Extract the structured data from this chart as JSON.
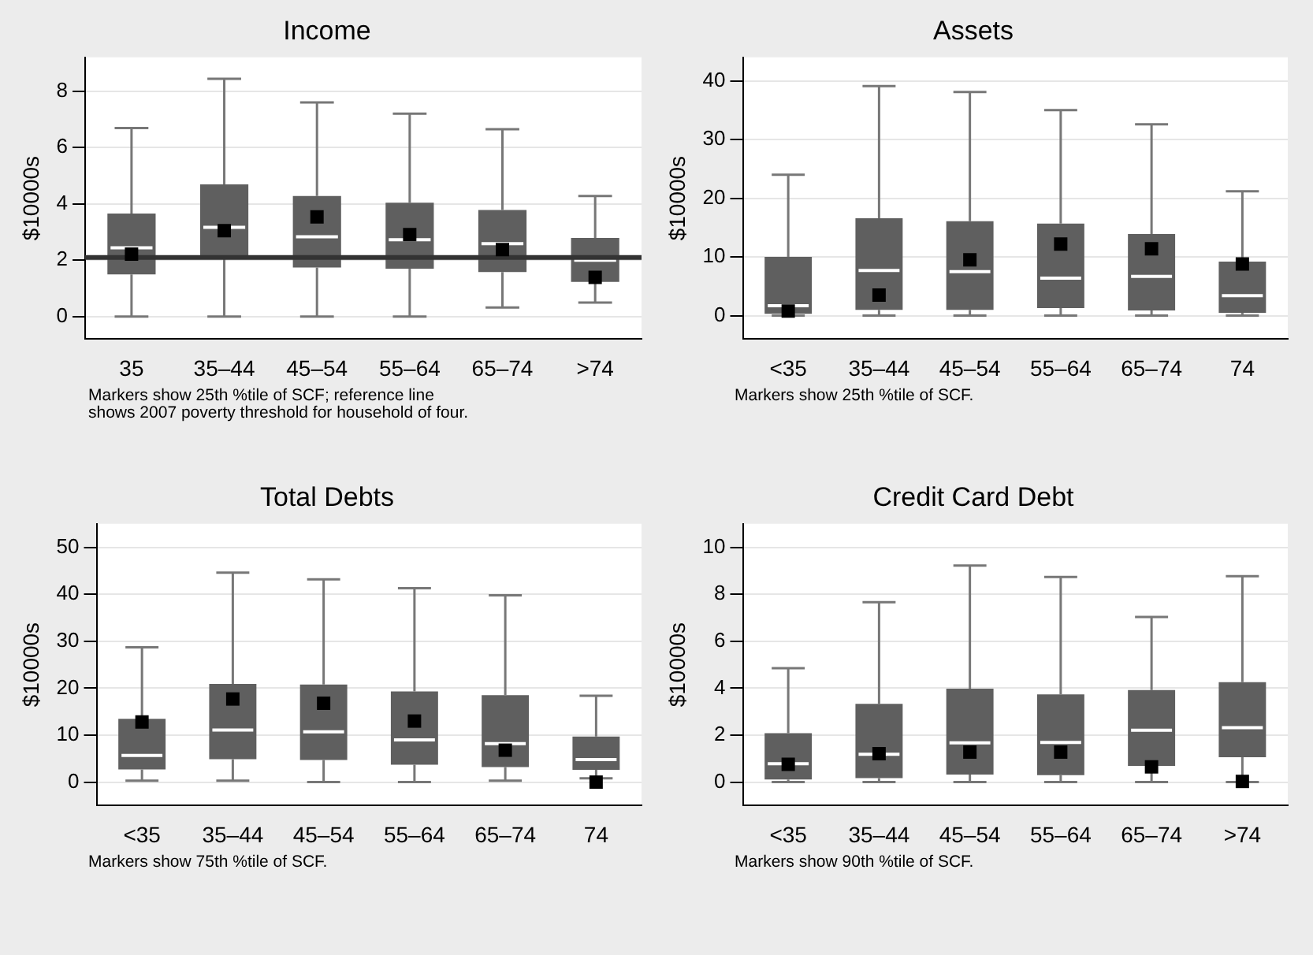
{
  "chart_data": [
    {
      "type": "box",
      "title": "Income",
      "ylabel": "$10000s",
      "categories": [
        "35",
        "35–44",
        "45–54",
        "55–64",
        "65–74",
        ">74"
      ],
      "ylim": [
        -0.8,
        9.2
      ],
      "yticks": [
        0,
        2,
        4,
        6,
        8
      ],
      "grid": "y",
      "legend": false,
      "series": [
        {
          "color": "#5f5f5f",
          "boxes": [
            {
              "low": 0,
              "q1": 1.5,
              "median": 2.44,
              "q3": 3.66,
              "high": 6.69
            },
            {
              "low": 0,
              "q1": 2.06,
              "median": 3.17,
              "q3": 4.69,
              "high": 8.44
            },
            {
              "low": 0,
              "q1": 1.74,
              "median": 2.83,
              "q3": 4.28,
              "high": 7.6
            },
            {
              "low": 0,
              "q1": 1.7,
              "median": 2.73,
              "q3": 4.04,
              "high": 7.2
            },
            {
              "low": 0.32,
              "q1": 1.58,
              "median": 2.59,
              "q3": 3.78,
              "high": 6.65
            },
            {
              "low": 0.5,
              "q1": 1.23,
              "median": 2.0,
              "q3": 2.79,
              "high": 4.28
            }
          ]
        },
        {
          "type": "scatter",
          "color": "#000000",
          "marker": "square",
          "x": [
            "35",
            "35–44",
            "45–54",
            "55–64",
            "65–74",
            ">74"
          ],
          "values": [
            2.22,
            3.05,
            3.54,
            2.91,
            2.38,
            1.39
          ]
        }
      ],
      "ref_lines": [
        {
          "axis": "y",
          "value": 2.1,
          "color": "#333333"
        }
      ],
      "annotations": [
        "Markers show 25th %tile of SCF; reference line\nshows 2007 poverty threshold for household of four."
      ]
    },
    {
      "type": "box",
      "title": "Assets",
      "ylabel": "$10000s",
      "categories": [
        "<35",
        "35–44",
        "45–54",
        "55–64",
        "65–74",
        "74"
      ],
      "ylim": [
        -4,
        44
      ],
      "yticks": [
        0,
        10,
        20,
        30,
        40
      ],
      "grid": "y",
      "legend": false,
      "series": [
        {
          "color": "#5f5f5f",
          "boxes": [
            {
              "low": 0,
              "q1": 0.3,
              "median": 1.7,
              "q3": 10,
              "high": 24
            },
            {
              "low": 0,
              "q1": 1.0,
              "median": 7.7,
              "q3": 16.6,
              "high": 39.1
            },
            {
              "low": 0,
              "q1": 1.0,
              "median": 7.5,
              "q3": 16.1,
              "high": 38.1
            },
            {
              "low": 0,
              "q1": 1.3,
              "median": 6.4,
              "q3": 15.7,
              "high": 35
            },
            {
              "low": 0,
              "q1": 0.9,
              "median": 6.7,
              "q3": 13.9,
              "high": 32.6
            },
            {
              "low": 0,
              "q1": 0.5,
              "median": 3.4,
              "q3": 9.2,
              "high": 21.2
            }
          ]
        },
        {
          "type": "scatter",
          "color": "#000000",
          "marker": "square",
          "x": [
            "<35",
            "35–44",
            "45–54",
            "55–64",
            "65–74",
            "74"
          ],
          "values": [
            0.8,
            3.5,
            9.5,
            12.2,
            11.4,
            8.8
          ]
        }
      ],
      "annotations": [
        "Markers show 25th %tile of SCF."
      ]
    },
    {
      "type": "box",
      "title": "Total Debts",
      "ylabel": "$10000s",
      "categories": [
        "<35",
        "35–44",
        "45–54",
        "55–64",
        "65–74",
        "74"
      ],
      "ylim": [
        -5,
        55
      ],
      "yticks": [
        0,
        10,
        20,
        30,
        40,
        50
      ],
      "grid": "y",
      "legend": false,
      "series": [
        {
          "color": "#5f5f5f",
          "boxes": [
            {
              "low": 0.3,
              "q1": 2.7,
              "median": 5.7,
              "q3": 13.5,
              "high": 28.7
            },
            {
              "low": 0.3,
              "q1": 4.9,
              "median": 11.1,
              "q3": 20.9,
              "high": 44.6
            },
            {
              "low": 0,
              "q1": 4.7,
              "median": 10.7,
              "q3": 20.8,
              "high": 43.2
            },
            {
              "low": 0,
              "q1": 3.7,
              "median": 9.0,
              "q3": 19.3,
              "high": 41.3
            },
            {
              "low": 0.3,
              "q1": 3.2,
              "median": 8.2,
              "q3": 18.5,
              "high": 39.8
            },
            {
              "low": 0.8,
              "q1": 2.6,
              "median": 4.8,
              "q3": 9.7,
              "high": 18.4
            }
          ]
        },
        {
          "type": "scatter",
          "color": "#000000",
          "marker": "square",
          "x": [
            "<35",
            "35–44",
            "45–54",
            "55–64",
            "65–74",
            "74"
          ],
          "values": [
            12.8,
            17.7,
            16.8,
            13.0,
            6.8,
            0
          ]
        }
      ],
      "annotations": [
        "Markers show 75th %tile of SCF."
      ]
    },
    {
      "type": "box",
      "title": "Credit Card Debt",
      "ylabel": "$10000s",
      "categories": [
        "<35",
        "35–44",
        "45–54",
        "55–64",
        "65–74",
        ">74"
      ],
      "ylim": [
        -1,
        11
      ],
      "yticks": [
        0,
        2,
        4,
        6,
        8,
        10
      ],
      "grid": "y",
      "legend": false,
      "series": [
        {
          "color": "#5f5f5f",
          "boxes": [
            {
              "low": 0,
              "q1": 0.11,
              "median": 0.78,
              "q3": 2.08,
              "high": 4.85
            },
            {
              "low": 0,
              "q1": 0.17,
              "median": 1.19,
              "q3": 3.33,
              "high": 7.66
            },
            {
              "low": 0,
              "q1": 0.32,
              "median": 1.67,
              "q3": 3.98,
              "high": 9.22
            },
            {
              "low": 0,
              "q1": 0.3,
              "median": 1.69,
              "q3": 3.74,
              "high": 8.74
            },
            {
              "low": 0,
              "q1": 0.69,
              "median": 2.21,
              "q3": 3.92,
              "high": 7.03
            },
            {
              "low": 0,
              "q1": 1.06,
              "median": 2.32,
              "q3": 4.26,
              "high": 8.77
            }
          ]
        },
        {
          "type": "scatter",
          "color": "#000000",
          "marker": "square",
          "x": [
            "<35",
            "35–44",
            "45–54",
            "55–64",
            "65–74",
            ">74"
          ],
          "values": [
            0.76,
            1.21,
            1.28,
            1.28,
            0.65,
            0.03
          ]
        }
      ],
      "annotations": [
        "Markers show 90th %tile of SCF."
      ]
    }
  ]
}
